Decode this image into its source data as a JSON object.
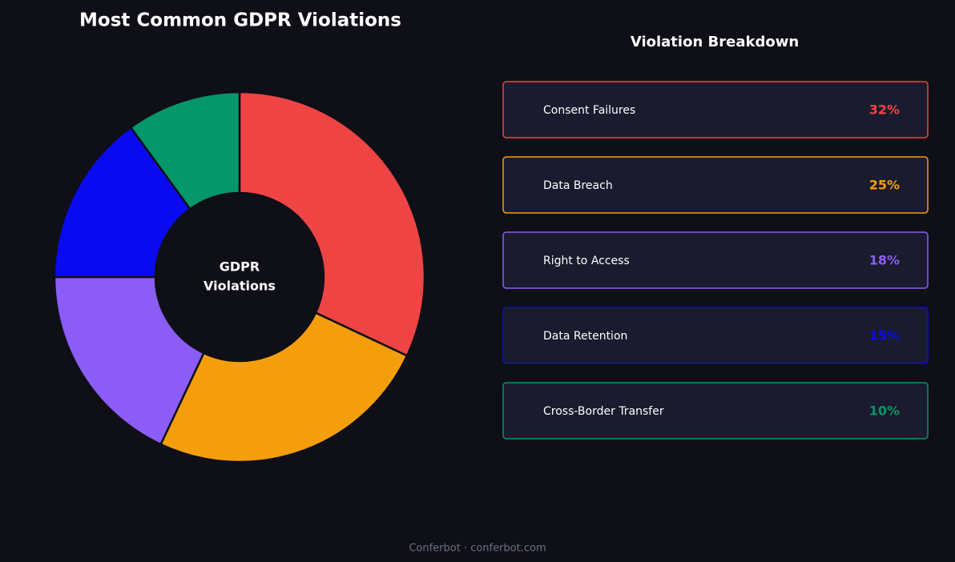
{
  "chart_data": {
    "type": "pie",
    "title": "Most Common GDPR Violations",
    "center_label": [
      "GDPR",
      "Violations"
    ],
    "legend_title": "Violation Breakdown",
    "categories": [
      "Consent Failures",
      "Data Breach",
      "Right to Access",
      "Data Retention",
      "Cross-Border Transfer"
    ],
    "values": [
      32,
      25,
      18,
      15,
      10
    ],
    "value_labels": [
      "32%",
      "25%",
      "18%",
      "15%",
      "10%"
    ],
    "colors": [
      "#ef4444",
      "#f59e0b",
      "#8b5cf6",
      "#0a0af0",
      "#059669"
    ],
    "footer": "Conferbot · conferbot.com"
  }
}
